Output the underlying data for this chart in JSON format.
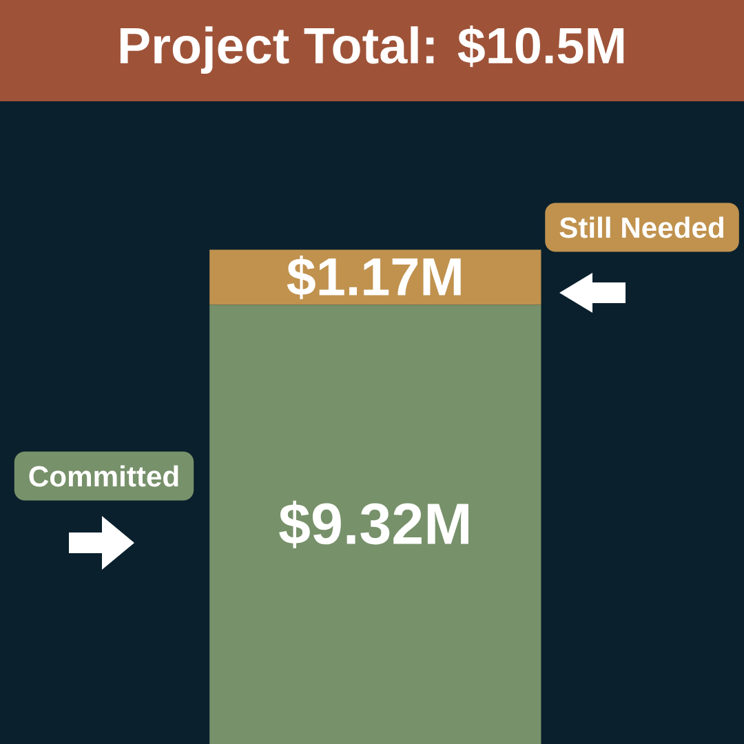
{
  "chart_data": {
    "type": "bar",
    "title": "Project Total: $10.5M",
    "categories": [
      null
    ],
    "stacked": true,
    "series": [
      {
        "name": "Committed",
        "color": "#77916a",
        "values": [
          9.32
        ],
        "value_labels": [
          "$9.32M"
        ]
      },
      {
        "name": "Still Needed",
        "color": "#c0924e",
        "values": [
          1.17
        ],
        "value_labels": [
          "$1.17M"
        ]
      }
    ]
  }
}
